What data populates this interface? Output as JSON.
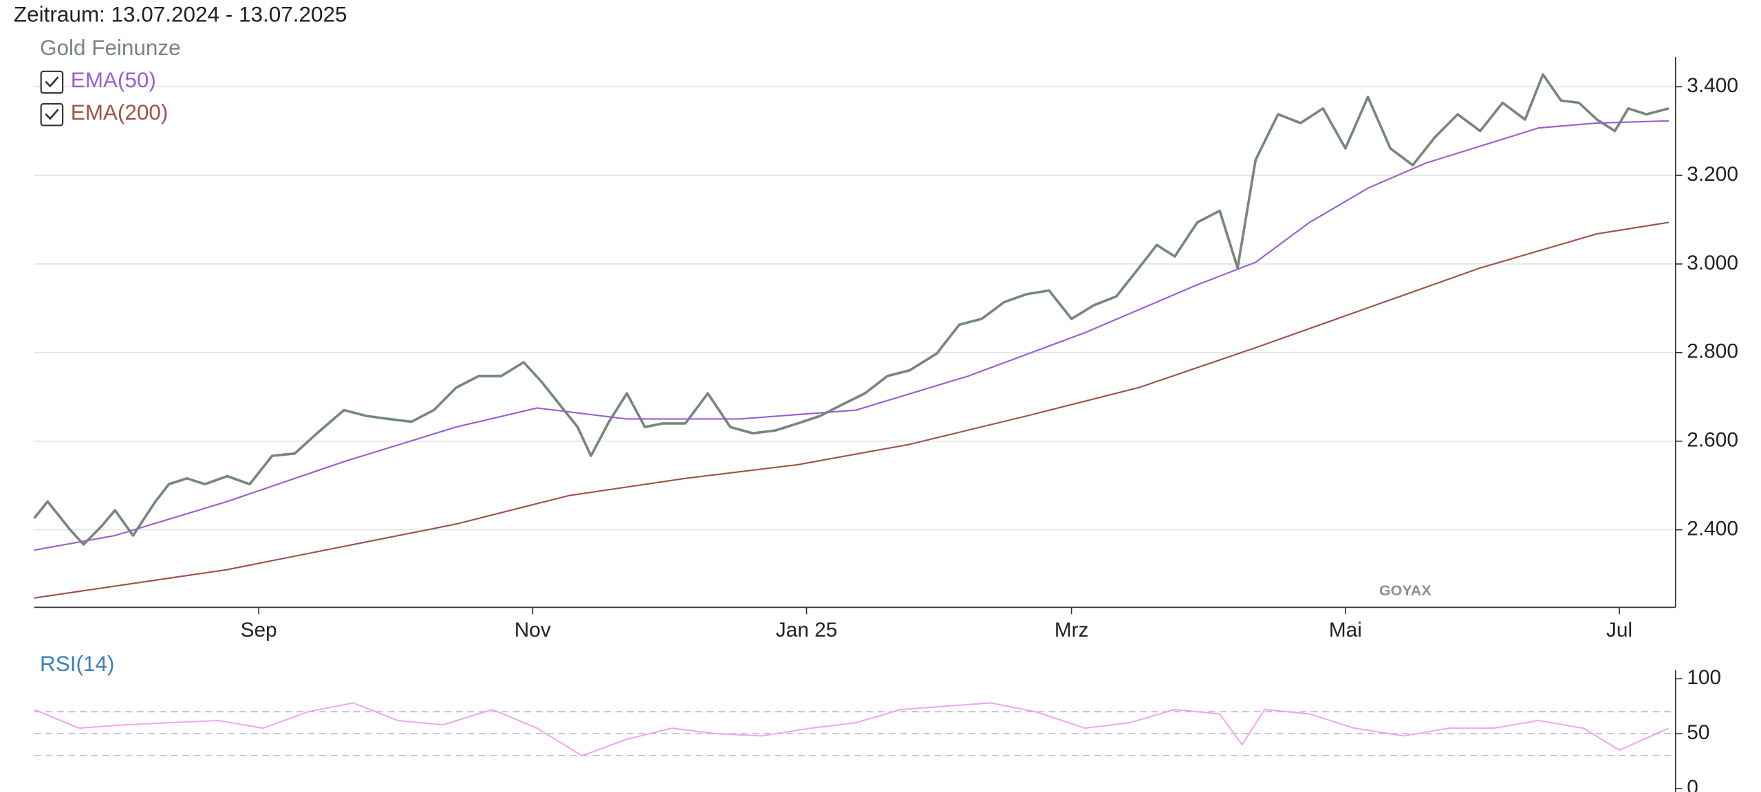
{
  "header": {
    "title": "Zeitraum: 13.07.2024 - 13.07.2025"
  },
  "watermark": "GOYAX",
  "chart_data": [
    {
      "type": "line",
      "xlim": [
        0,
        365
      ],
      "ylim": [
        2225,
        3467
      ],
      "grid": true,
      "xticks": [
        {
          "value": 50,
          "label": "Sep"
        },
        {
          "value": 111,
          "label": "Nov"
        },
        {
          "value": 172,
          "label": "Jan 25"
        },
        {
          "value": 231,
          "label": "Mrz"
        },
        {
          "value": 292,
          "label": "Mai"
        },
        {
          "value": 353,
          "label": "Jul"
        }
      ],
      "yticks": [
        {
          "value": 2400,
          "label": "2.400"
        },
        {
          "value": 2600,
          "label": "2.600"
        },
        {
          "value": 2800,
          "label": "2.800"
        },
        {
          "value": 3000,
          "label": "3.000"
        },
        {
          "value": 3200,
          "label": "3.200"
        },
        {
          "value": 3400,
          "label": "3.400"
        }
      ],
      "series": [
        {
          "name": "Gold Feinunze",
          "color": "#76877b",
          "width": 2.2,
          "x": [
            0,
            3,
            8,
            11,
            15,
            18,
            22,
            27,
            30,
            34,
            38,
            43,
            48,
            53,
            58,
            63,
            69,
            74,
            79,
            84,
            89,
            94,
            99,
            104,
            109,
            113,
            117,
            121,
            124,
            128,
            132,
            136,
            140,
            145,
            150,
            155,
            160,
            165,
            170,
            175,
            180,
            185,
            190,
            195,
            201,
            206,
            211,
            216,
            221,
            226,
            231,
            236,
            241,
            246,
            250,
            254,
            259,
            264,
            268,
            272,
            277,
            282,
            287,
            292,
            297,
            302,
            307,
            312,
            317,
            322,
            327,
            332,
            336,
            340,
            344,
            348,
            352,
            355,
            359,
            364
          ],
          "values": [
            2426,
            2464,
            2400,
            2367,
            2408,
            2444,
            2387,
            2464,
            2503,
            2516,
            2503,
            2521,
            2503,
            2567,
            2572,
            2618,
            2670,
            2657,
            2650,
            2644,
            2670,
            2721,
            2747,
            2747,
            2778,
            2734,
            2683,
            2632,
            2567,
            2644,
            2708,
            2632,
            2640,
            2640,
            2708,
            2632,
            2618,
            2624,
            2640,
            2657,
            2683,
            2708,
            2747,
            2760,
            2798,
            2863,
            2876,
            2914,
            2932,
            2940,
            2876,
            2907,
            2927,
            2991,
            3043,
            3017,
            3094,
            3120,
            2991,
            3235,
            3338,
            3318,
            3351,
            3261,
            3377,
            3261,
            3223,
            3287,
            3338,
            3300,
            3364,
            3326,
            3428,
            3369,
            3364,
            3326,
            3300,
            3351,
            3338,
            3351
          ]
        },
        {
          "name": "EMA(50)",
          "color": "#9a5fcf",
          "width": 1.3,
          "x": [
            0,
            18,
            43,
            69,
            94,
            112,
            132,
            157,
            183,
            208,
            234,
            259,
            272,
            284,
            297,
            310,
            322,
            335,
            348,
            364
          ],
          "values": [
            2354,
            2387,
            2464,
            2554,
            2632,
            2675,
            2650,
            2650,
            2670,
            2747,
            2845,
            2953,
            3004,
            3094,
            3171,
            3228,
            3266,
            3307,
            3318,
            3323
          ]
        },
        {
          "name": "EMA(200)",
          "color": "#a0524a",
          "width": 1.3,
          "x": [
            0,
            43,
            94,
            119,
            145,
            170,
            195,
            221,
            246,
            272,
            297,
            322,
            348,
            364
          ],
          "values": [
            2246,
            2310,
            2413,
            2477,
            2516,
            2547,
            2593,
            2657,
            2721,
            2811,
            2901,
            2991,
            3068,
            3094
          ]
        }
      ]
    },
    {
      "type": "line",
      "xlim": [
        0,
        365
      ],
      "ylim": [
        -6,
        108
      ],
      "yticks": [
        0,
        50,
        100
      ],
      "hlines": [
        30,
        50,
        70
      ],
      "series": [
        {
          "name": "RSI(14)",
          "color": "#f2a3ee",
          "width": 1.2,
          "x": [
            0,
            10,
            20,
            30,
            41,
            51,
            61,
            71,
            81,
            91,
            102,
            112,
            122,
            132,
            142,
            152,
            162,
            173,
            183,
            193,
            203,
            213,
            223,
            234,
            244,
            254,
            264,
            269,
            274,
            284,
            294,
            305,
            315,
            325,
            335,
            345,
            353,
            364
          ],
          "values": [
            72,
            55,
            58,
            60,
            62,
            55,
            70,
            78,
            62,
            58,
            72,
            55,
            30,
            45,
            55,
            50,
            48,
            55,
            60,
            72,
            75,
            78,
            70,
            55,
            60,
            72,
            68,
            40,
            72,
            68,
            55,
            48,
            55,
            55,
            62,
            55,
            35,
            55
          ]
        }
      ]
    }
  ]
}
